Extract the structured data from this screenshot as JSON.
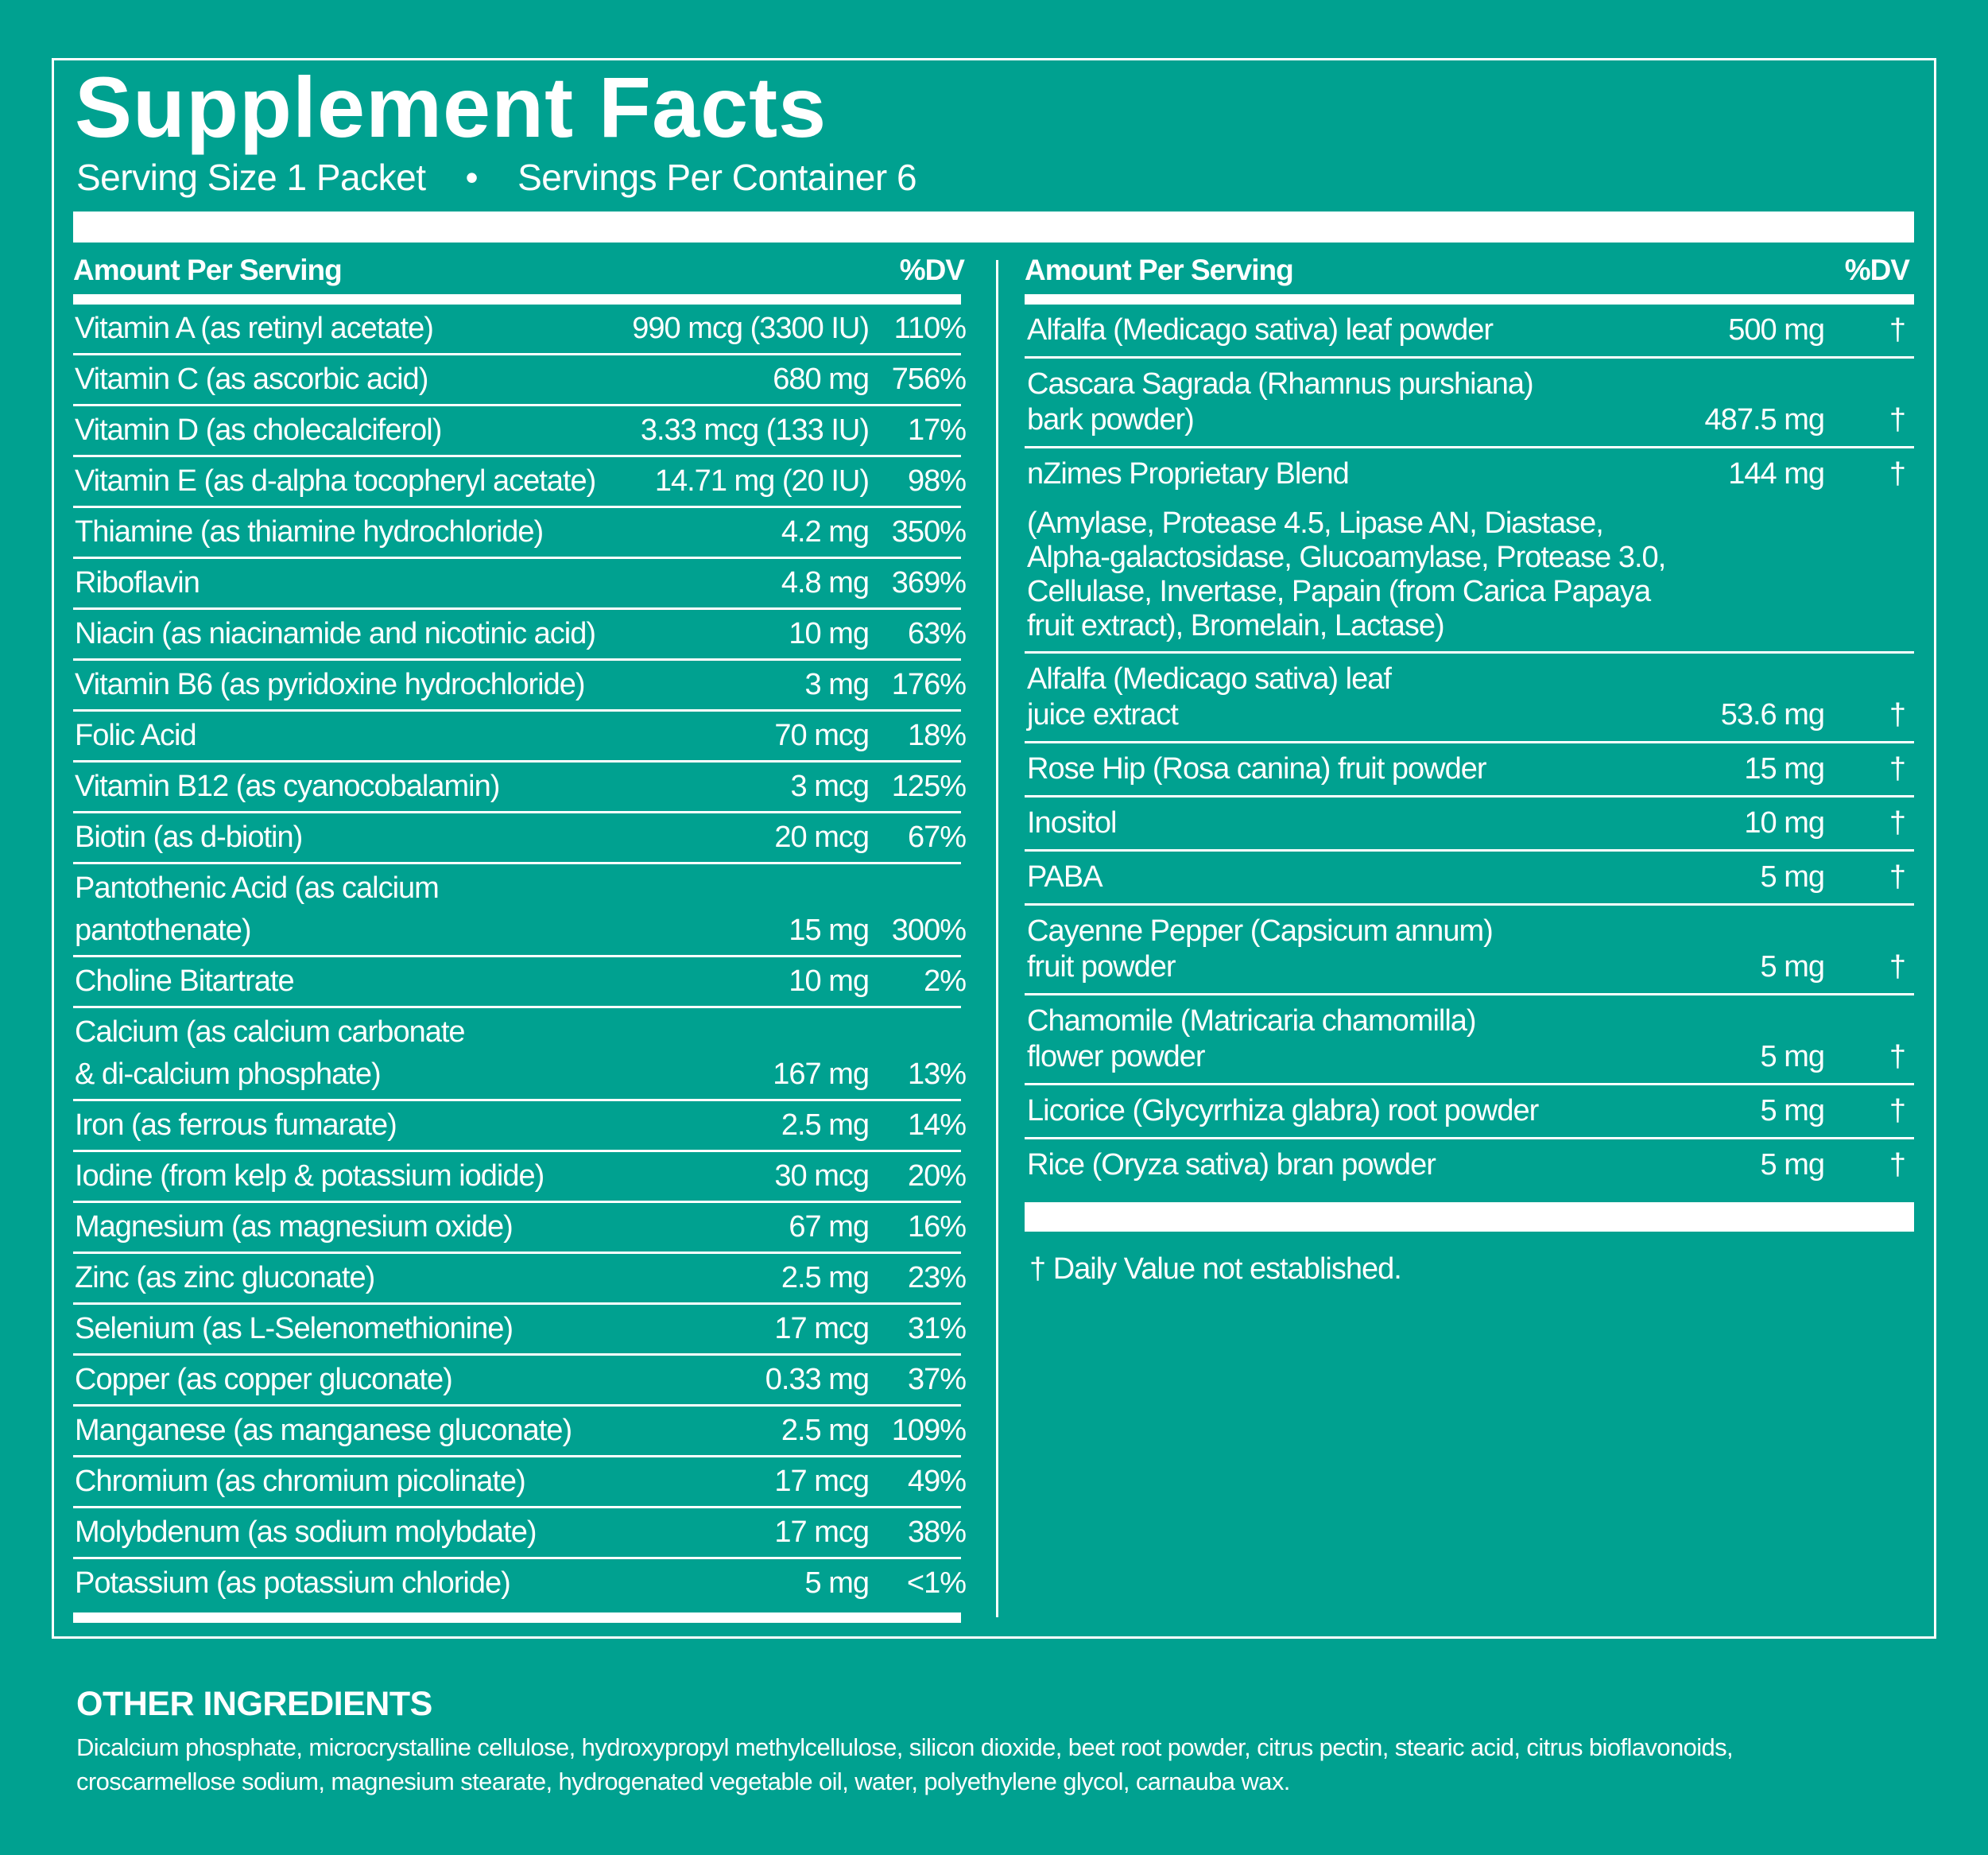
{
  "title": "Supplement Facts",
  "serving": {
    "size": "Serving Size 1 Packet",
    "separator": "•",
    "per_container": "Servings Per Container 6"
  },
  "left": {
    "header": {
      "amount": "Amount Per Serving",
      "dv": "%DV"
    },
    "rows": [
      {
        "name": "Vitamin A (as retinyl acetate)",
        "amount": "990 mcg (3300 IU)",
        "dv": "110%"
      },
      {
        "name": "Vitamin C (as ascorbic acid)",
        "amount": "680 mg",
        "dv": "756%"
      },
      {
        "name": "Vitamin D (as cholecalciferol)",
        "amount": "3.33 mcg (133 IU)",
        "dv": "17%"
      },
      {
        "name": "Vitamin E (as d-alpha tocopheryl acetate)",
        "amount": "14.71 mg (20 IU)",
        "dv": "98%"
      },
      {
        "name": "Thiamine (as thiamine hydrochloride)",
        "amount": "4.2 mg",
        "dv": "350%"
      },
      {
        "name": "Riboflavin",
        "amount": "4.8 mg",
        "dv": "369%"
      },
      {
        "name": "Niacin (as niacinamide and nicotinic acid)",
        "amount": "10 mg",
        "dv": "63%"
      },
      {
        "name": "Vitamin B6 (as pyridoxine hydrochloride)",
        "amount": "3 mg",
        "dv": "176%"
      },
      {
        "name": "Folic Acid",
        "amount": "70 mcg",
        "dv": "18%"
      },
      {
        "name": "Vitamin B12 (as cyanocobalamin)",
        "amount": "3 mcg",
        "dv": "125%"
      },
      {
        "name": "Biotin (as d-biotin)",
        "amount": "20 mcg",
        "dv": "67%"
      },
      {
        "name": "Pantothenic Acid (as calcium\npantothenate)",
        "amount": "15 mg",
        "dv": "300%"
      },
      {
        "name": "Choline Bitartrate",
        "amount": "10 mg",
        "dv": "2%"
      },
      {
        "name": "Calcium (as calcium carbonate\n& di-calcium phosphate)",
        "amount": "167 mg",
        "dv": "13%"
      },
      {
        "name": "Iron (as ferrous fumarate)",
        "amount": "2.5 mg",
        "dv": "14%"
      },
      {
        "name": "Iodine (from kelp & potassium iodide)",
        "amount": "30 mcg",
        "dv": "20%"
      },
      {
        "name": "Magnesium (as magnesium oxide)",
        "amount": "67 mg",
        "dv": "16%"
      },
      {
        "name": "Zinc (as zinc gluconate)",
        "amount": "2.5 mg",
        "dv": "23%"
      },
      {
        "name": "Selenium (as L-Selenomethionine)",
        "amount": "17 mcg",
        "dv": "31%"
      },
      {
        "name": "Copper (as copper gluconate)",
        "amount": "0.33 mg",
        "dv": "37%"
      },
      {
        "name": "Manganese (as manganese gluconate)",
        "amount": "2.5 mg",
        "dv": "109%"
      },
      {
        "name": "Chromium (as chromium picolinate)",
        "amount": "17 mcg",
        "dv": "49%"
      },
      {
        "name": "Molybdenum (as sodium molybdate)",
        "amount": "17 mcg",
        "dv": "38%"
      },
      {
        "name": "Potassium (as potassium chloride)",
        "amount": "5 mg",
        "dv": "<1%"
      }
    ]
  },
  "right": {
    "header": {
      "amount": "Amount Per Serving",
      "dv": "%DV"
    },
    "rows": [
      {
        "name": "Alfalfa (Medicago sativa) leaf powder",
        "amount": "500 mg",
        "dv": "†"
      },
      {
        "name": "Cascara Sagrada (Rhamnus purshiana)\nbark powder)",
        "amount": "487.5 mg",
        "dv": "†"
      },
      {
        "name": "nZimes Proprietary Blend",
        "amount": "144 mg",
        "dv": "†",
        "description": "(Amylase, Protease 4.5, Lipase AN, Diastase,\nAlpha-galactosidase, Glucoamylase, Protease 3.0,\nCellulase, Invertase, Papain (from Carica Papaya\nfruit extract), Bromelain, Lactase)"
      },
      {
        "name": "Alfalfa (Medicago sativa) leaf\njuice extract",
        "amount": "53.6 mg",
        "dv": "†"
      },
      {
        "name": "Rose Hip (Rosa canina) fruit powder",
        "amount": "15 mg",
        "dv": "†"
      },
      {
        "name": "Inositol",
        "amount": "10 mg",
        "dv": "†"
      },
      {
        "name": "PABA",
        "amount": "5 mg",
        "dv": "†"
      },
      {
        "name": "Cayenne Pepper (Capsicum annum)\nfruit powder",
        "amount": "5 mg",
        "dv": "†"
      },
      {
        "name": "Chamomile (Matricaria chamomilla)\nflower powder",
        "amount": "5 mg",
        "dv": "†"
      },
      {
        "name": "Licorice (Glycyrrhiza glabra) root powder",
        "amount": "5 mg",
        "dv": "†"
      },
      {
        "name": "Rice (Oryza sativa) bran powder",
        "amount": "5 mg",
        "dv": "†"
      }
    ],
    "footnote": "† Daily Value not established."
  },
  "other_ingredients": {
    "heading": "OTHER INGREDIENTS",
    "text": "Dicalcium phosphate, microcrystalline cellulose, hydroxypropyl methylcellulose, silicon dioxide, beet root powder, citrus pectin, stearic acid, citrus bioflavonoids,\ncroscarmellose sodium, magnesium stearate, hydrogenated vegetable oil, water, polyethylene glycol, carnauba wax."
  },
  "colors": {
    "background": "#00a190",
    "foreground": "#ffffff"
  }
}
